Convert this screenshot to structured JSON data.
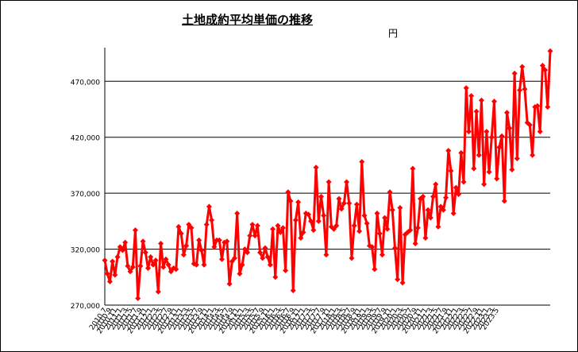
{
  "chart_data": {
    "type": "line",
    "title": "土地成約平均単価の推移",
    "ylabel": "円",
    "xlabel": "",
    "ylim": [
      270000,
      500000
    ],
    "yticks": [
      270000,
      320000,
      370000,
      420000,
      470000
    ],
    "ytick_labels": [
      "270,000",
      "320,000",
      "370,000",
      "420,000",
      "470,000"
    ],
    "grid": true,
    "legend": "none",
    "start_year": 2010,
    "start_month": 7,
    "series": [
      {
        "color": "#ff0000",
        "values": [
          310000,
          298000,
          291000,
          309000,
          297000,
          313000,
          322000,
          319000,
          326000,
          305000,
          300000,
          304000,
          337000,
          276000,
          305000,
          327000,
          317000,
          303000,
          313000,
          306000,
          310000,
          282000,
          325000,
          304000,
          311000,
          306000,
          300000,
          303000,
          302000,
          340000,
          334000,
          315000,
          323000,
          342000,
          339000,
          307000,
          306000,
          328000,
          319000,
          306000,
          342000,
          358000,
          346000,
          322000,
          328000,
          328000,
          311000,
          326000,
          327000,
          289000,
          309000,
          312000,
          352000,
          298000,
          306000,
          320000,
          317000,
          332000,
          342000,
          332000,
          341000,
          317000,
          312000,
          321000,
          313000,
          306000,
          338000,
          295000,
          341000,
          335000,
          339000,
          301000,
          371000,
          363000,
          283000,
          346000,
          362000,
          330000,
          335000,
          352000,
          351000,
          345000,
          337000,
          393000,
          345000,
          367000,
          350000,
          315000,
          380000,
          340000,
          338000,
          341000,
          365000,
          356000,
          361000,
          380000,
          361000,
          312000,
          341000,
          360000,
          336000,
          398000,
          350000,
          343000,
          323000,
          322000,
          302000,
          352000,
          334000,
          315000,
          348000,
          338000,
          371000,
          355000,
          321000,
          293000,
          357000,
          290000,
          333000,
          335000,
          337000,
          392000,
          325000,
          339000,
          365000,
          367000,
          330000,
          355000,
          348000,
          367000,
          378000,
          340000,
          358000,
          355000,
          366000,
          408000,
          390000,
          352000,
          375000,
          369000,
          406000,
          380000,
          464000,
          425000,
          457000,
          392000,
          443000,
          404000,
          453000,
          378000,
          425000,
          389000,
          420000,
          452000,
          383000,
          411000,
          421000,
          363000,
          442000,
          428000,
          391000,
          477000,
          401000,
          462000,
          483000,
          463000,
          433000,
          431000,
          404000,
          447000,
          448000,
          425000,
          484000,
          480000,
          447000,
          497000
        ]
      }
    ],
    "xtick_labels": [
      "2010.7",
      "2010.9",
      "2010.11",
      "2011.1",
      "2011.3",
      "2011.5",
      "2011.7",
      "2011.9",
      "2011.11",
      "2012.1",
      "2012.3",
      "2012.5",
      "2012.7",
      "2012.9",
      "2012.11",
      "2013.1",
      "2013.3",
      "2013.5",
      "2013.7",
      "2013.9",
      "2013.11",
      "2014.1",
      "2014.3",
      "2014.5",
      "2014.7",
      "2014.9",
      "2014.11",
      "2015.1",
      "2015.3",
      "2015.5",
      "2015.7",
      "2015.9",
      "2015.11",
      "2016.1",
      "2016.3",
      "2016.5",
      "2016.7",
      "2016.9",
      "2016.11",
      "2017.1",
      "2017.3",
      "2017.5",
      "2017.7",
      "2017.9",
      "2017.11",
      "2018.1",
      "2018.3",
      "2018.5",
      "2018.7",
      "2018.9",
      "2018.11",
      "2019.1",
      "2019.3",
      "2019.5",
      "2019.7",
      "2019.9",
      "2019.11",
      "2020.1",
      "2020.3",
      "2020.5",
      "2020.7",
      "2020.9",
      "2020.11",
      "2021.1",
      "2021.3",
      "2021.5",
      "2021.7",
      "2021.9",
      "2021.11",
      "2022.1",
      "2022.3",
      "2022.5",
      "2022.7",
      "2022.9",
      "2022.11",
      "2023.1",
      "2023.3",
      "2023.5"
    ]
  }
}
